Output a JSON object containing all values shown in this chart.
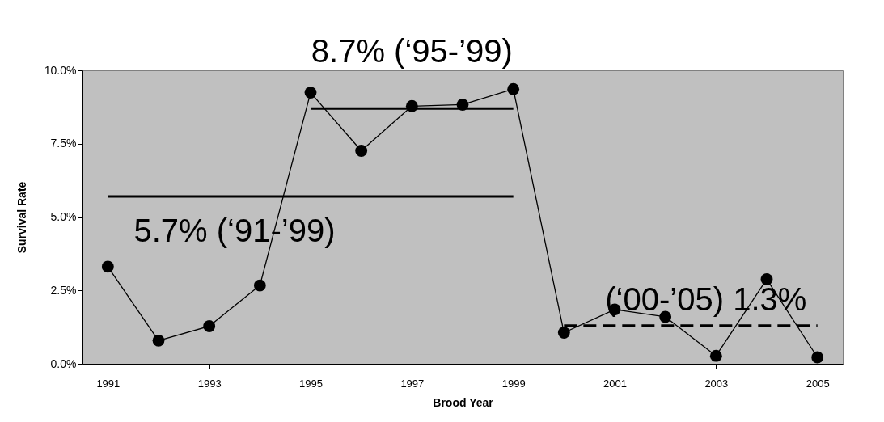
{
  "chart_data": {
    "type": "line",
    "xlabel": "Brood Year",
    "ylabel": "Survival Rate",
    "x": [
      1991,
      1992,
      1993,
      1994,
      1995,
      1996,
      1997,
      1998,
      1999,
      2000,
      2001,
      2002,
      2003,
      2004,
      2005
    ],
    "xlim": [
      1990.5,
      2005.5
    ],
    "xticks": [
      1991,
      1993,
      1995,
      1997,
      1999,
      2001,
      2003,
      2005
    ],
    "ylim": [
      0,
      10
    ],
    "yticks": [
      {
        "value": 0,
        "label": "0.0%"
      },
      {
        "value": 2.5,
        "label": "2.5%"
      },
      {
        "value": 5,
        "label": "5.0%"
      },
      {
        "value": 7.5,
        "label": "7.5%"
      },
      {
        "value": 10,
        "label": "10.0%"
      }
    ],
    "grid": false,
    "series": [
      {
        "type": "line",
        "color": "#000000",
        "marker": "circle",
        "line_style": "solid",
        "values": [
          3.31,
          0.79,
          1.28,
          2.67,
          9.24,
          7.26,
          8.78,
          8.83,
          9.36,
          1.06,
          1.85,
          1.6,
          0.27,
          2.88,
          0.22
        ]
      },
      {
        "type": "line",
        "color": "#000000",
        "marker": "none",
        "line_style": "solid",
        "x": [
          1991,
          1999
        ],
        "values": [
          5.7,
          5.7
        ]
      },
      {
        "type": "line",
        "color": "#000000",
        "marker": "none",
        "line_style": "solid",
        "x": [
          1995,
          1999
        ],
        "values": [
          8.7,
          8.7
        ]
      },
      {
        "type": "line",
        "color": "#000000",
        "marker": "none",
        "line_style": "dashed",
        "x": [
          2000,
          2005
        ],
        "values": [
          1.3,
          1.3
        ]
      }
    ],
    "annotations": [
      {
        "text": "5.7% (‘91-’99)",
        "x": 1993.5,
        "y": 5.7
      },
      {
        "text": "8.7% (‘95-’99)",
        "x": 1997,
        "y": 8.7
      },
      {
        "text": "(‘00-’05) 1.3%",
        "x": 2002.8,
        "y": 1.3
      }
    ]
  }
}
